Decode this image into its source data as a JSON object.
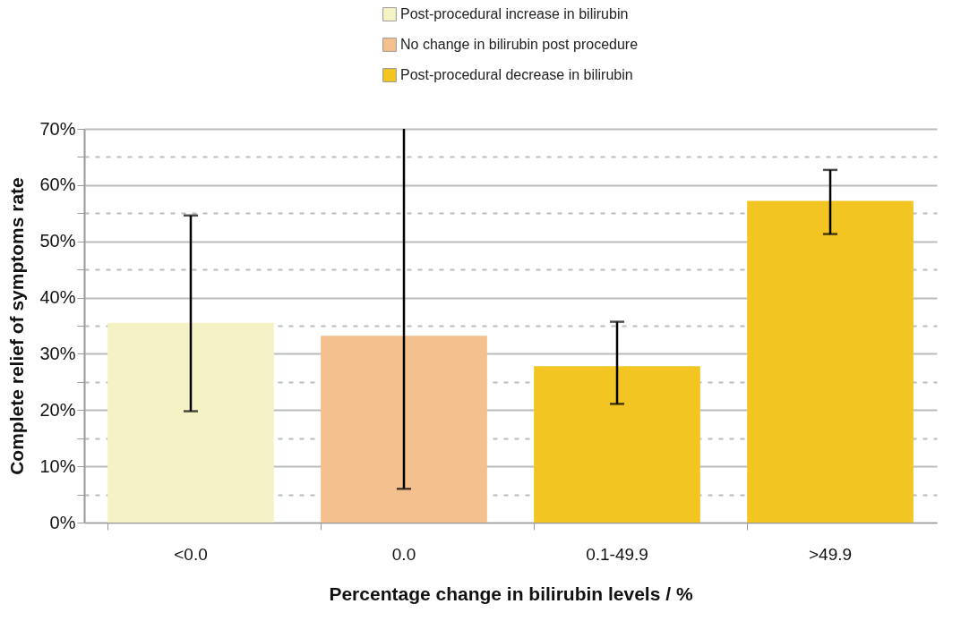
{
  "chart_data": {
    "type": "bar",
    "xlabel": "Percentage change in bilirubin levels / %",
    "ylabel": "Complete relief of symptoms rate",
    "categories": [
      "<0.0",
      "0.0",
      "0.1-49.9",
      ">49.9"
    ],
    "series": [
      {
        "name": "Post-procedural increase in bilirubin",
        "color": "#f5f3c6",
        "values": [
          35.5,
          null,
          null,
          null
        ],
        "errors": [
          [
            19.8,
            54.6
          ],
          null,
          null,
          null
        ]
      },
      {
        "name": "No change in bilirubin post procedure",
        "color": "#f4c08e",
        "values": [
          null,
          33.2,
          null,
          null
        ],
        "errors": [
          null,
          [
            6.0,
            70
          ],
          null,
          null
        ]
      },
      {
        "name": "Post-procedural decrease in bilirubin",
        "color": "#f2c522",
        "values": [
          null,
          null,
          27.8,
          57.2
        ],
        "errors": [
          null,
          null,
          [
            21.1,
            35.7
          ],
          [
            51.3,
            62.7
          ]
        ]
      }
    ],
    "ylim": [
      0,
      70
    ],
    "yticks": [
      {
        "value": 0,
        "label": "0%"
      },
      {
        "value": 5,
        "label": null
      },
      {
        "value": 10,
        "label": "10%"
      },
      {
        "value": 15,
        "label": null
      },
      {
        "value": 20,
        "label": "20%"
      },
      {
        "value": 25,
        "label": null
      },
      {
        "value": 30,
        "label": "30%"
      },
      {
        "value": 35,
        "label": null
      },
      {
        "value": 40,
        "label": "40%"
      },
      {
        "value": 45,
        "label": null
      },
      {
        "value": 50,
        "label": "50%"
      },
      {
        "value": 55,
        "label": null
      },
      {
        "value": 60,
        "label": "60%"
      },
      {
        "value": 65,
        "label": null
      },
      {
        "value": 70,
        "label": "70%"
      }
    ],
    "grid": "y",
    "legend": "top"
  }
}
